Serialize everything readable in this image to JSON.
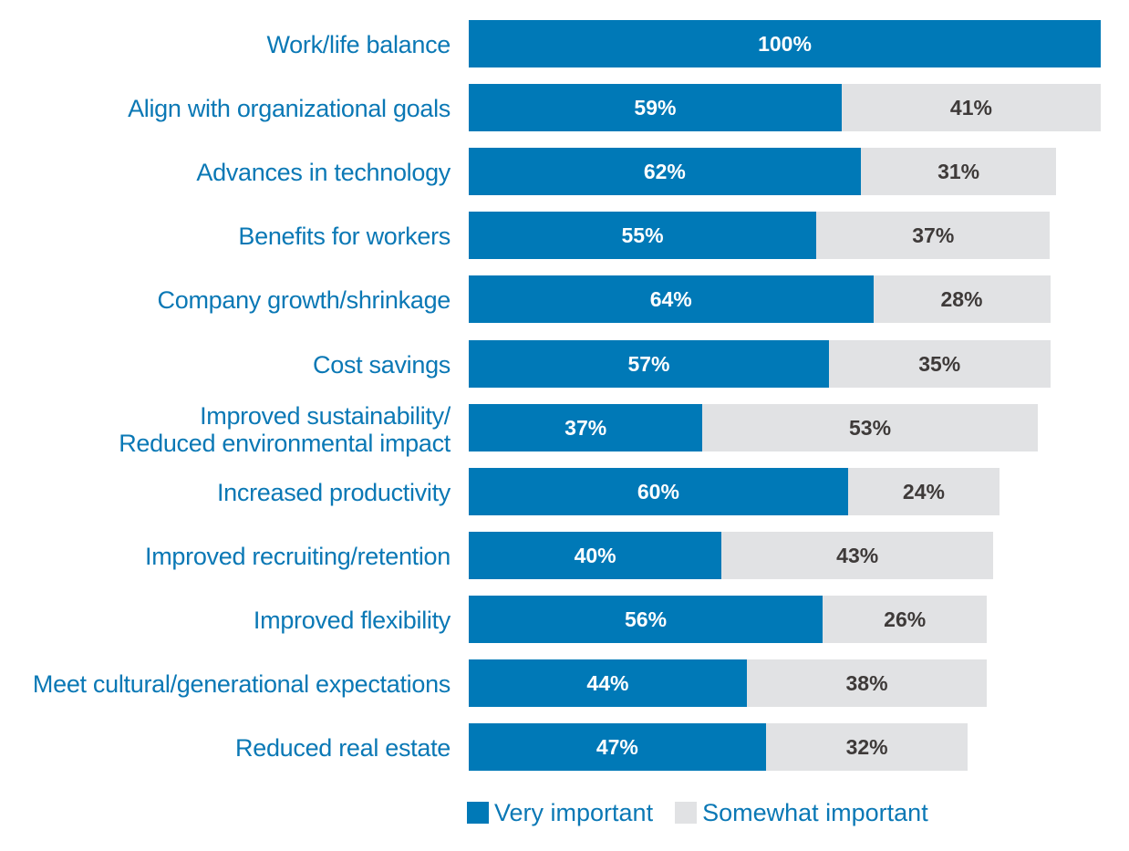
{
  "chart_data": {
    "type": "bar",
    "orientation": "horizontal",
    "stacked": true,
    "title": "",
    "xlabel": "",
    "ylabel": "",
    "xlim": [
      0,
      100
    ],
    "grid": false,
    "legend_position": "bottom",
    "categories": [
      [
        "Work/life balance"
      ],
      [
        "Align with organizational goals"
      ],
      [
        "Advances in technology"
      ],
      [
        "Benefits for workers"
      ],
      [
        "Company growth/shrinkage"
      ],
      [
        "Cost savings"
      ],
      [
        "Improved sustainability/",
        "Reduced environmental impact"
      ],
      [
        "Increased productivity"
      ],
      [
        "Improved recruiting/retention"
      ],
      [
        "Improved flexibility"
      ],
      [
        "Meet cultural/generational expectations"
      ],
      [
        "Reduced real estate"
      ]
    ],
    "series": [
      {
        "name": "Very important",
        "color": "#0079b7",
        "values": [
          100,
          59,
          62,
          55,
          64,
          57,
          37,
          60,
          40,
          56,
          44,
          47
        ],
        "labels": [
          "100%",
          "59%",
          "62%",
          "55%",
          "64%",
          "57%",
          "37%",
          "60%",
          "40%",
          "56%",
          "44%",
          "47%"
        ]
      },
      {
        "name": "Somewhat important",
        "color": "#e1e2e4",
        "values": [
          0,
          41,
          31,
          37,
          28,
          35,
          53,
          24,
          43,
          26,
          38,
          32
        ],
        "labels": [
          "",
          "41%",
          "31%",
          "37%",
          "28%",
          "35%",
          "53%",
          "24%",
          "43%",
          "26%",
          "38%",
          "32%"
        ]
      }
    ]
  },
  "legend": {
    "items": [
      {
        "label": "Very important",
        "color": "#0079b7"
      },
      {
        "label": "Somewhat important",
        "color": "#e1e2e4"
      }
    ]
  }
}
